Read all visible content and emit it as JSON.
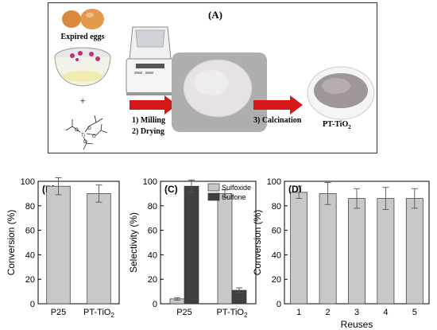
{
  "panel_a": {
    "label": "(A)",
    "eggs_label": "Expired eggs",
    "plus": "+",
    "step1": "1) Milling",
    "step2": "2) Drying",
    "step3": "3) Calcination",
    "product_base": "PT-TiO",
    "product_sub": "2"
  },
  "chart_data": [
    {
      "type": "bar",
      "panel_label": "(B)",
      "categories": [
        [
          "P25",
          ""
        ],
        [
          "PT-TiO",
          "2"
        ]
      ],
      "values": [
        96,
        90
      ],
      "errors": [
        7,
        7
      ],
      "ylabel": "Conversion (%)",
      "ylim": [
        0,
        100
      ],
      "yticks": [
        0,
        20,
        40,
        60,
        80,
        100
      ],
      "bar_color": "#c8c8c8"
    },
    {
      "type": "bar",
      "panel_label": "(C)",
      "categories": [
        [
          "P25",
          ""
        ],
        [
          "PT-TiO",
          "2"
        ]
      ],
      "series": [
        {
          "name": "Sulfoxide",
          "values": [
            4,
            90
          ],
          "errors": [
            1,
            3
          ],
          "color": "#c8c8c8"
        },
        {
          "name": "Sulfone",
          "values": [
            96,
            11
          ],
          "errors": [
            5,
            2
          ],
          "color": "#404040"
        }
      ],
      "ylabel": "Selectivity (%)",
      "ylim": [
        0,
        100
      ],
      "yticks": [
        0,
        20,
        40,
        60,
        80,
        100
      ],
      "legend": "top-right"
    },
    {
      "type": "bar",
      "panel_label": "(D)",
      "categories": [
        [
          "1",
          ""
        ],
        [
          "2",
          ""
        ],
        [
          "3",
          ""
        ],
        [
          "4",
          ""
        ],
        [
          "5",
          ""
        ]
      ],
      "values": [
        91,
        90,
        86,
        86,
        86
      ],
      "errors": [
        5,
        9,
        8,
        9,
        8
      ],
      "xlabel": "Reuses",
      "ylabel": "Conversion (%)",
      "ylim": [
        0,
        100
      ],
      "yticks": [
        0,
        20,
        40,
        60,
        80,
        100
      ],
      "bar_color": "#c8c8c8"
    }
  ]
}
